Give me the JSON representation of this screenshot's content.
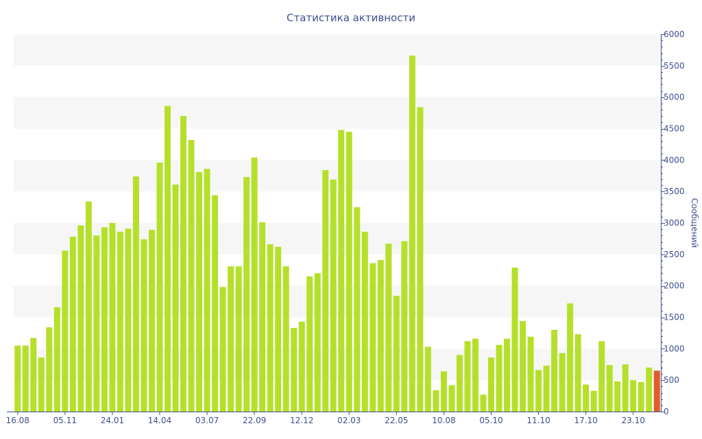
{
  "chart_data": {
    "type": "bar",
    "title": "Статистика активности",
    "ylabel": "Сообщений",
    "xlabel": "",
    "ylim": [
      0,
      6000
    ],
    "y_ticks": [
      0,
      500,
      1000,
      1500,
      2000,
      2500,
      3000,
      3500,
      4000,
      4500,
      5000,
      5500,
      6000
    ],
    "x_tick_labels": [
      {
        "label": "16.08",
        "index": 0
      },
      {
        "label": "05.11",
        "index": 6
      },
      {
        "label": "24.01",
        "index": 12
      },
      {
        "label": "14.04",
        "index": 18
      },
      {
        "label": "03.07",
        "index": 24
      },
      {
        "label": "22.09",
        "index": 30
      },
      {
        "label": "12.12",
        "index": 36
      },
      {
        "label": "02.03",
        "index": 42
      },
      {
        "label": "22.05",
        "index": 48
      },
      {
        "label": "10.08",
        "index": 54
      },
      {
        "label": "05.10",
        "index": 60
      },
      {
        "label": "11.10",
        "index": 66
      },
      {
        "label": "17.10",
        "index": 72
      },
      {
        "label": "23.10",
        "index": 78
      }
    ],
    "values": [
      1050,
      1050,
      1170,
      860,
      1340,
      1660,
      2560,
      2780,
      2960,
      3340,
      2800,
      2930,
      3000,
      2860,
      2910,
      3740,
      2740,
      2890,
      3960,
      4860,
      3610,
      4700,
      4320,
      3810,
      3860,
      3440,
      1980,
      2310,
      2310,
      3730,
      4040,
      3010,
      2660,
      2620,
      2310,
      1330,
      1430,
      2150,
      2200,
      3840,
      3690,
      4480,
      4450,
      3250,
      2860,
      2360,
      2410,
      2670,
      1840,
      2710,
      5660,
      4840,
      1030,
      340,
      640,
      420,
      900,
      1120,
      1160,
      270,
      860,
      1060,
      1160,
      2290,
      1440,
      1190,
      660,
      730,
      1300,
      930,
      1720,
      1230,
      430,
      330,
      1120,
      740,
      480,
      750,
      500,
      470,
      700,
      650
    ],
    "highlight_index": 81,
    "colors": {
      "bar": "#b5e02a",
      "highlight": "#e05c2a",
      "band": "#f6f6f6",
      "axis": "#3d4f8a",
      "text": "#3d4f8a"
    },
    "grid": "alternating-bands",
    "legend": "none"
  }
}
